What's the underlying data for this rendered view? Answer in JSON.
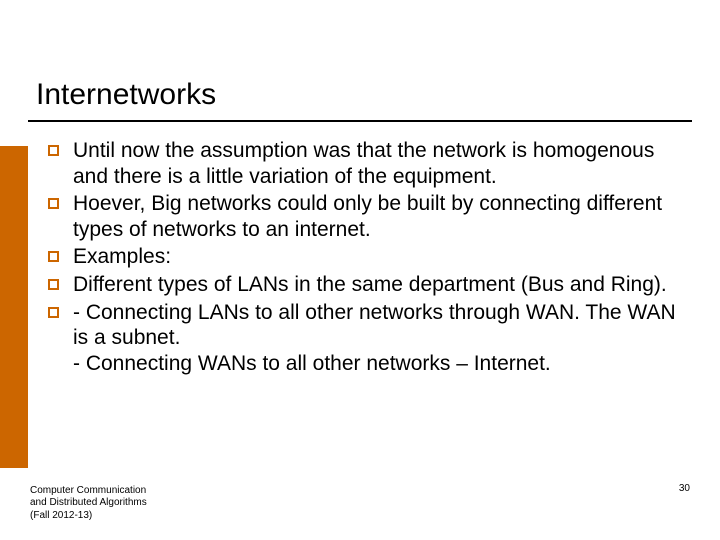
{
  "title": "Internetworks",
  "bullets": [
    "Until now the assumption was that the network is homogenous and there is a little variation of the equipment.",
    "Hoever, Big networks could only be built by connecting different  types of networks to an internet.",
    "Examples:",
    "Different types of LANs in the same department (Bus and Ring).",
    "- Connecting LANs to all other networks through WAN. The WAN is a subnet.\n- Connecting WANs to all other networks – Internet."
  ],
  "footer": {
    "line1": "Computer Communication",
    "line2": "and Distributed Algorithms",
    "line3": " (Fall 2012-13)"
  },
  "page_number": "30",
  "colors": {
    "accent": "#cc6600",
    "text": "#000000",
    "background": "#ffffff"
  }
}
